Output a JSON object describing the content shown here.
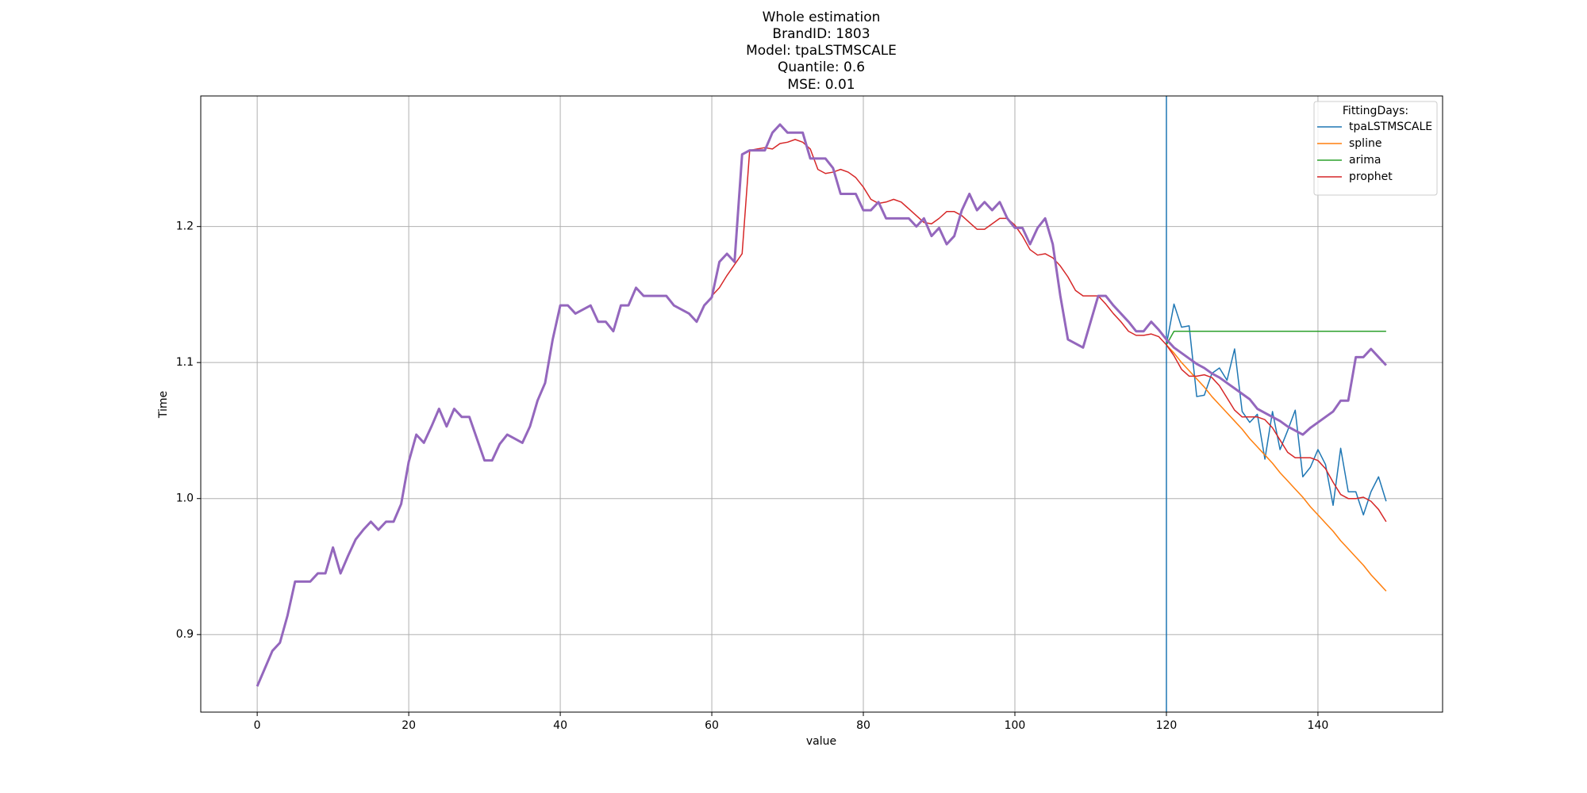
{
  "chart_data": {
    "type": "line",
    "title": [
      "Whole estimation",
      "BrandID: 1803",
      "Model: tpaLSTMSCALE",
      "Quantile: 0.6",
      "MSE: 0.01"
    ],
    "xlabel": "value",
    "ylabel": "Time",
    "xlim": [
      -7.45,
      156.45
    ],
    "ylim": [
      0.843,
      1.296
    ],
    "xticks": [
      0,
      20,
      40,
      60,
      80,
      100,
      120,
      140
    ],
    "yticks": [
      0.9,
      {
        "value": 1,
        "label": "1.0"
      },
      1.1,
      1.2
    ],
    "grid": true,
    "legend_title": "FittingDays:",
    "legend_loc": "upper right",
    "vline": {
      "x": 120,
      "color": "#1f77b4"
    },
    "series": [
      {
        "name": "tpaLSTMSCALE",
        "color": "#1f77b4",
        "x": [
          120,
          121,
          122,
          123,
          124,
          125,
          126,
          127,
          128,
          129,
          130,
          131,
          132,
          133,
          134,
          135,
          136,
          137,
          138,
          139,
          140,
          141,
          142,
          143,
          144,
          145,
          146,
          147,
          148,
          149
        ],
        "values": [
          1.113,
          1.143,
          1.126,
          1.127,
          1.075,
          1.076,
          1.092,
          1.096,
          1.087,
          1.11,
          1.064,
          1.056,
          1.062,
          1.029,
          1.064,
          1.036,
          1.05,
          1.065,
          1.016,
          1.023,
          1.036,
          1.025,
          0.995,
          1.037,
          1.005,
          1.005,
          0.988,
          1.005,
          1.016,
          0.998
        ]
      },
      {
        "name": "spline",
        "color": "#ff7f0e",
        "x": [
          120,
          121,
          122,
          123,
          124,
          125,
          126,
          127,
          128,
          129,
          130,
          131,
          132,
          133,
          134,
          135,
          136,
          137,
          138,
          139,
          140,
          141,
          142,
          143,
          144,
          145,
          146,
          147,
          148,
          149
        ],
        "values": [
          1.113,
          1.107,
          1.1,
          1.094,
          1.088,
          1.082,
          1.075,
          1.069,
          1.063,
          1.057,
          1.051,
          1.044,
          1.038,
          1.032,
          1.026,
          1.019,
          1.013,
          1.007,
          1.001,
          0.994,
          0.988,
          0.982,
          0.976,
          0.969,
          0.963,
          0.957,
          0.951,
          0.944,
          0.938,
          0.932
        ]
      },
      {
        "name": "arima",
        "color": "#2ca02c",
        "x": [
          120,
          121,
          122,
          123,
          124,
          125,
          126,
          127,
          128,
          129,
          130,
          131,
          132,
          133,
          134,
          135,
          136,
          137,
          138,
          139,
          140,
          141,
          142,
          143,
          144,
          145,
          146,
          147,
          148,
          149
        ],
        "values": [
          1.113,
          1.123,
          1.123,
          1.123,
          1.123,
          1.123,
          1.123,
          1.123,
          1.123,
          1.123,
          1.123,
          1.123,
          1.123,
          1.123,
          1.123,
          1.123,
          1.123,
          1.123,
          1.123,
          1.123,
          1.123,
          1.123,
          1.123,
          1.123,
          1.123,
          1.123,
          1.123,
          1.123,
          1.123,
          1.123
        ]
      },
      {
        "name": "prophet",
        "color": "#d62728",
        "x": [
          60,
          61,
          62,
          63,
          64,
          65,
          66,
          67,
          68,
          69,
          70,
          71,
          72,
          73,
          74,
          75,
          76,
          77,
          78,
          79,
          80,
          81,
          82,
          83,
          84,
          85,
          86,
          87,
          88,
          89,
          90,
          91,
          92,
          93,
          94,
          95,
          96,
          97,
          98,
          99,
          100,
          101,
          102,
          103,
          104,
          105,
          106,
          107,
          108,
          109,
          110,
          111,
          112,
          113,
          114,
          115,
          116,
          117,
          118,
          119,
          120,
          121,
          122,
          123,
          124,
          125,
          126,
          127,
          128,
          129,
          130,
          131,
          132,
          133,
          134,
          135,
          136,
          137,
          138,
          139,
          140,
          141,
          142,
          143,
          144,
          145,
          146,
          147,
          148,
          149
        ],
        "values": [
          1.149,
          1.155,
          1.164,
          1.172,
          1.18,
          1.256,
          1.257,
          1.258,
          1.257,
          1.261,
          1.262,
          1.264,
          1.262,
          1.257,
          1.242,
          1.239,
          1.24,
          1.242,
          1.24,
          1.236,
          1.229,
          1.22,
          1.217,
          1.218,
          1.22,
          1.218,
          1.213,
          1.208,
          1.203,
          1.202,
          1.206,
          1.211,
          1.211,
          1.208,
          1.203,
          1.198,
          1.198,
          1.202,
          1.206,
          1.206,
          1.201,
          1.193,
          1.183,
          1.179,
          1.18,
          1.177,
          1.171,
          1.163,
          1.153,
          1.149,
          1.149,
          1.149,
          1.143,
          1.136,
          1.13,
          1.123,
          1.12,
          1.12,
          1.121,
          1.119,
          1.113,
          1.105,
          1.095,
          1.09,
          1.09,
          1.091,
          1.089,
          1.083,
          1.074,
          1.065,
          1.06,
          1.06,
          1.06,
          1.058,
          1.052,
          1.043,
          1.034,
          1.03,
          1.03,
          1.03,
          1.028,
          1.022,
          1.012,
          1.003,
          1.0,
          1.0,
          1.001,
          0.998,
          0.992,
          0.983
        ]
      },
      {
        "color": "#9467bd",
        "linewidth": 3,
        "x": [
          0,
          1,
          2,
          3,
          4,
          5,
          6,
          7,
          8,
          9,
          10,
          11,
          12,
          13,
          14,
          15,
          16,
          17,
          18,
          19,
          20,
          21,
          22,
          23,
          24,
          25,
          26,
          27,
          28,
          29,
          30,
          31,
          32,
          33,
          34,
          35,
          36,
          37,
          38,
          39,
          40,
          41,
          42,
          43,
          44,
          45,
          46,
          47,
          48,
          49,
          50,
          51,
          52,
          53,
          54,
          55,
          56,
          57,
          58,
          59,
          60,
          61,
          62,
          63,
          64,
          65,
          66,
          67,
          68,
          69,
          70,
          71,
          72,
          73,
          74,
          75,
          76,
          77,
          78,
          79,
          80,
          81,
          82,
          83,
          84,
          85,
          86,
          87,
          88,
          89,
          90,
          91,
          92,
          93,
          94,
          95,
          96,
          97,
          98,
          99,
          100,
          101,
          102,
          103,
          104,
          105,
          106,
          107,
          108,
          109,
          110,
          111,
          112,
          113,
          114,
          115,
          116,
          117,
          118,
          119,
          120,
          121,
          122,
          123,
          124,
          125,
          126,
          127,
          128,
          129,
          130,
          131,
          132,
          133,
          134,
          135,
          136,
          137,
          138,
          139,
          140,
          141,
          142,
          143,
          144,
          145,
          146,
          147,
          148,
          149
        ],
        "values": [
          0.862,
          0.875,
          0.888,
          0.894,
          0.914,
          0.939,
          0.939,
          0.939,
          0.945,
          0.945,
          0.964,
          0.945,
          0.958,
          0.97,
          0.977,
          0.983,
          0.977,
          0.983,
          0.983,
          0.996,
          1.027,
          1.047,
          1.041,
          1.053,
          1.066,
          1.053,
          1.066,
          1.06,
          1.06,
          1.044,
          1.028,
          1.028,
          1.04,
          1.047,
          1.044,
          1.041,
          1.053,
          1.072,
          1.085,
          1.117,
          1.142,
          1.142,
          1.136,
          1.139,
          1.142,
          1.13,
          1.13,
          1.123,
          1.142,
          1.142,
          1.155,
          1.149,
          1.149,
          1.149,
          1.149,
          1.142,
          1.139,
          1.136,
          1.13,
          1.142,
          1.148,
          1.174,
          1.18,
          1.174,
          1.253,
          1.256,
          1.256,
          1.256,
          1.269,
          1.275,
          1.269,
          1.269,
          1.269,
          1.25,
          1.25,
          1.25,
          1.243,
          1.224,
          1.224,
          1.224,
          1.212,
          1.212,
          1.218,
          1.206,
          1.206,
          1.206,
          1.206,
          1.2,
          1.206,
          1.193,
          1.199,
          1.187,
          1.193,
          1.212,
          1.224,
          1.212,
          1.218,
          1.212,
          1.218,
          1.206,
          1.199,
          1.199,
          1.187,
          1.199,
          1.206,
          1.187,
          1.149,
          1.117,
          1.114,
          1.111,
          1.13,
          1.149,
          1.149,
          1.142,
          1.136,
          1.13,
          1.123,
          1.123,
          1.13,
          1.124,
          1.117,
          1.111,
          1.107,
          1.103,
          1.099,
          1.096,
          1.092,
          1.089,
          1.085,
          1.081,
          1.077,
          1.073,
          1.066,
          1.063,
          1.06,
          1.057,
          1.053,
          1.05,
          1.047,
          1.052,
          1.056,
          1.06,
          1.064,
          1.072,
          1.072,
          1.104,
          1.104,
          1.11,
          1.104,
          1.098
        ]
      }
    ]
  }
}
